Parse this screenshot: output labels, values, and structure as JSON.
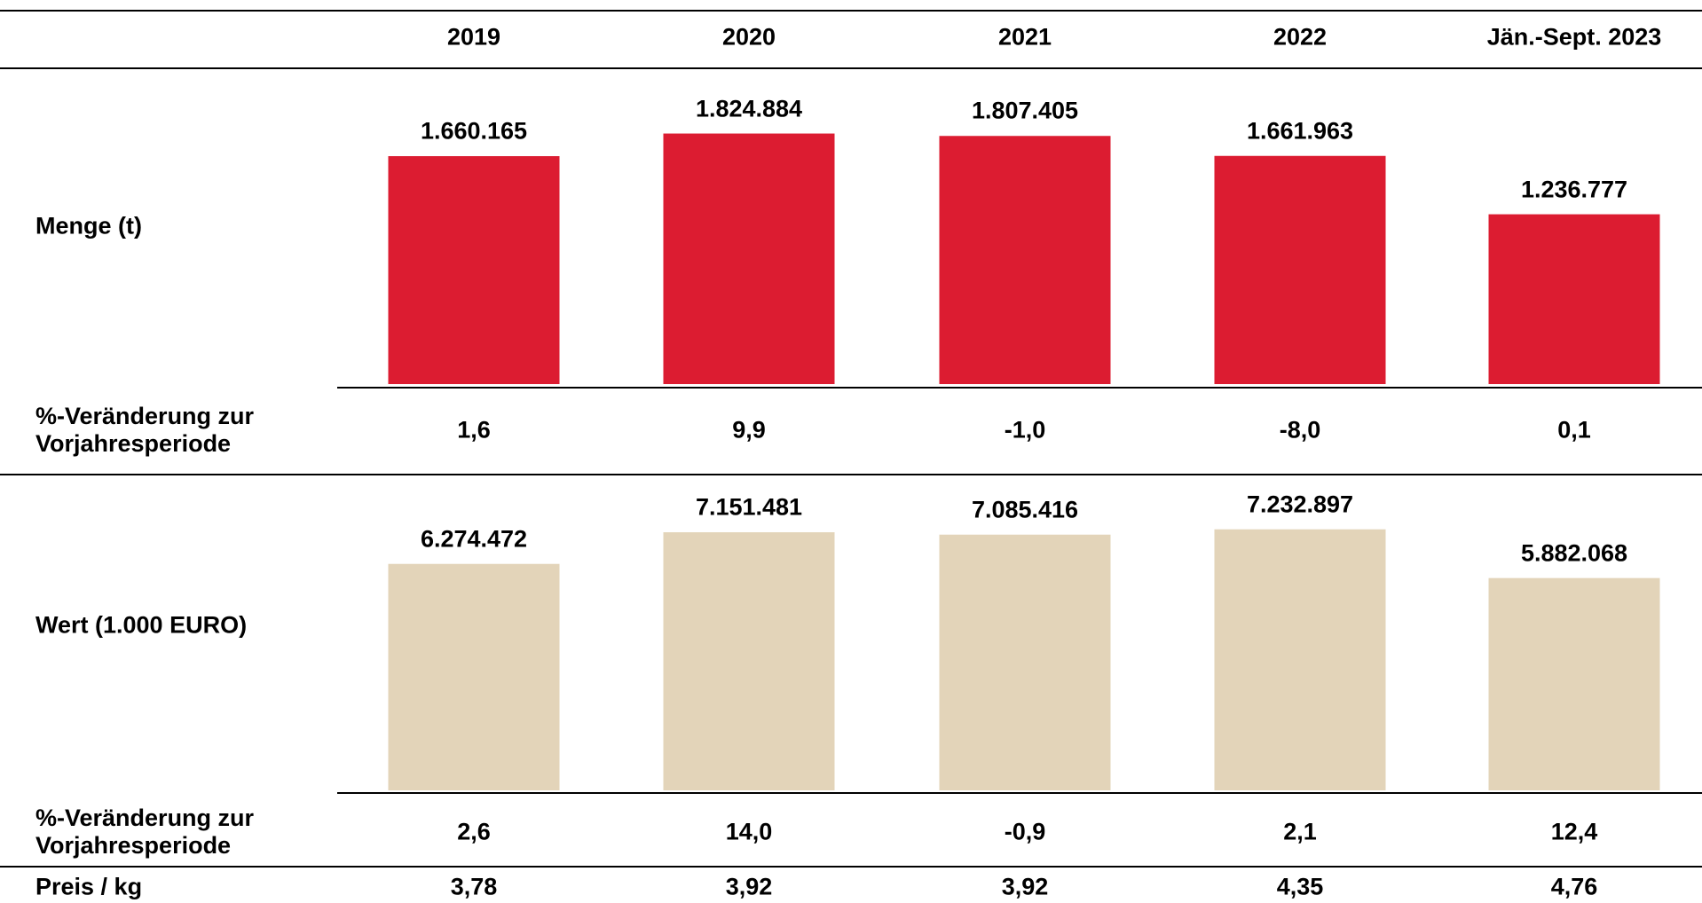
{
  "chart_data": [
    {
      "type": "bar",
      "title": "Menge (t)",
      "categories": [
        "2019",
        "2020",
        "2021",
        "2022",
        "Jän.-Sept. 2023"
      ],
      "values": [
        1660165,
        1824884,
        1807405,
        1661963,
        1236777
      ],
      "value_labels": [
        "1.660.165",
        "1.824.884",
        "1.807.405",
        "1.661.963",
        "1.236.777"
      ],
      "color": "#dc1c31",
      "ylim": [
        0,
        2300000
      ]
    },
    {
      "type": "bar",
      "title": "Wert (1.000 EURO)",
      "values": [
        6274472,
        7151481,
        7085416,
        7232897,
        5882068
      ],
      "value_labels": [
        "6.274.472",
        "7.151.481",
        "7.085.416",
        "7.232.897",
        "5.882.068"
      ],
      "color": "#e3d4b9",
      "ylim": [
        0,
        8750000
      ]
    }
  ],
  "table": {
    "rows": [
      {
        "label": "%-Veränderung zur Vorjahresperiode",
        "cells": [
          "1,6",
          "9,9",
          "-1,0",
          "-8,0",
          "0,1"
        ]
      },
      {
        "label": "%-Veränderung zur Vorjahresperiode",
        "cells": [
          "2,6",
          "14,0",
          "-0,9",
          "2,1",
          "12,4"
        ]
      },
      {
        "label": "Preis / kg",
        "cells": [
          "3,78",
          "3,92",
          "3,92",
          "4,35",
          "4,76"
        ]
      }
    ]
  }
}
